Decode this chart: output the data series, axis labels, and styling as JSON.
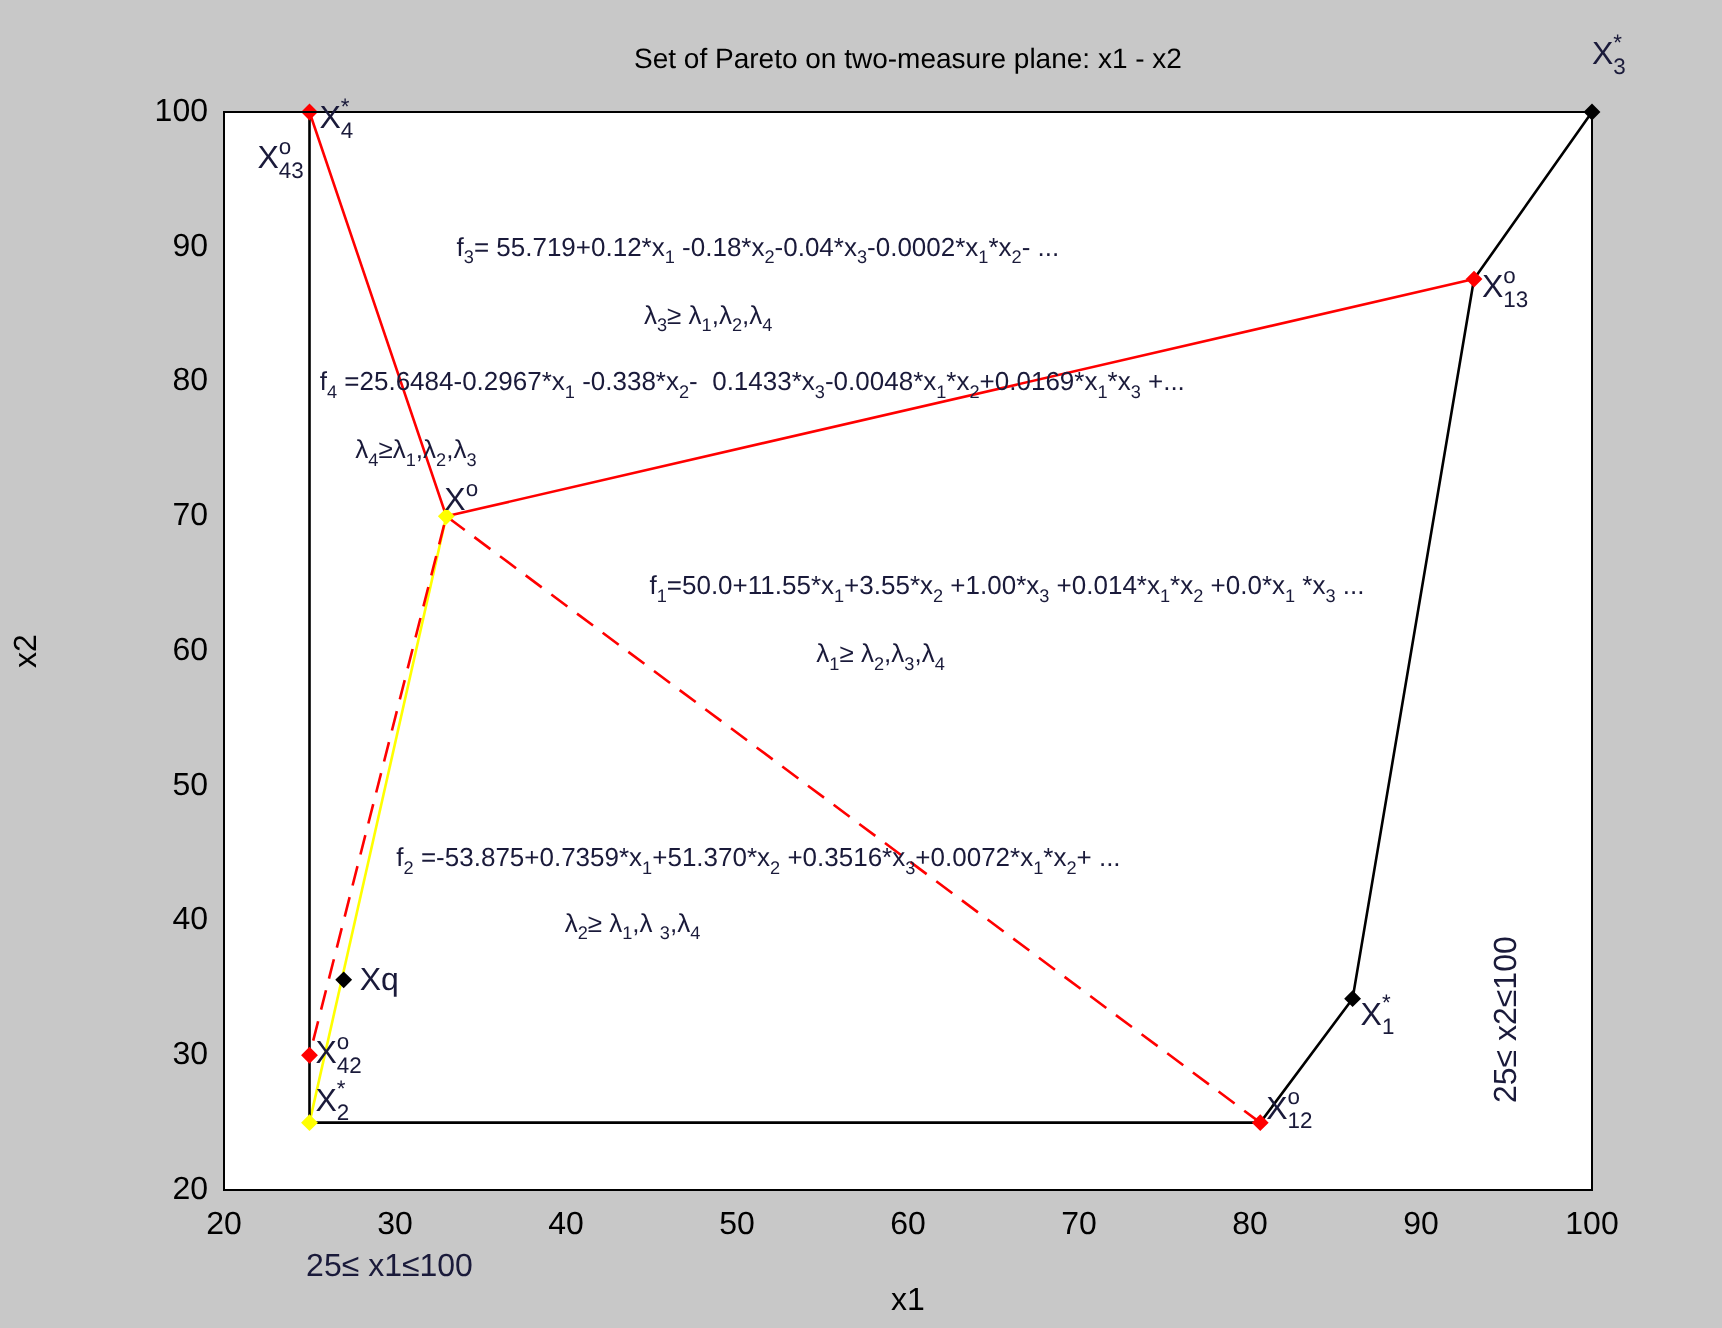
{
  "chart_data": {
    "type": "line",
    "title": "Set of Pareto on two-measure plane: x1 - x2",
    "xlabel": "x1",
    "ylabel": "x2",
    "xlim": [
      20,
      100
    ],
    "xticks": [
      20,
      30,
      40,
      50,
      60,
      70,
      80,
      90,
      100
    ],
    "ylim": [
      20,
      100
    ],
    "yticks": [
      20,
      30,
      40,
      50,
      60,
      70,
      80,
      90,
      100
    ],
    "grid": false,
    "legend": false,
    "marker": "none",
    "line_style": "solid",
    "series": [
      {
        "color": "#000000",
        "x": [
          25,
          25,
          80.6,
          86,
          93.1,
          100
        ],
        "values": [
          100,
          25,
          25,
          34.2,
          87.6,
          100
        ]
      },
      {
        "color": "#ff0000",
        "x": [
          25,
          33,
          93.1
        ],
        "values": [
          100,
          70,
          87.6
        ]
      },
      {
        "color": "#ff0000",
        "line_style": "dashed",
        "x": [
          80.6,
          33,
          25
        ],
        "values": [
          25,
          70,
          30
        ]
      },
      {
        "color": "#ffff00",
        "x": [
          33,
          25
        ],
        "values": [
          70,
          25
        ]
      },
      {
        "type": "scatter",
        "marker": "diamond",
        "x": [
          25,
          33,
          93.1,
          80.6,
          86,
          100,
          27,
          25,
          25
        ],
        "values": [
          100,
          70,
          87.6,
          25,
          34.2,
          100,
          35.6,
          30,
          25
        ],
        "colors": [
          "#ff0000",
          "#ffff00",
          "#ff0000",
          "#ff0000",
          "#000000",
          "#000000",
          "#000000",
          "#ff0000",
          "#ffff00"
        ]
      }
    ],
    "annotations": [
      {
        "text": "X$^{*}$$_{4}$",
        "x": 25,
        "y": 100
      },
      {
        "text": "X$^{o}$$_{43}$",
        "x": 25,
        "y": 100
      },
      {
        "text": "X$^{o}$",
        "x": 33,
        "y": 70
      },
      {
        "text": "X$^{o}$$_{13}$",
        "x": 93.1,
        "y": 87.6
      },
      {
        "text": "X$^{o}$$_{12}$",
        "x": 80.6,
        "y": 25
      },
      {
        "text": "X$^{*}$$_{1}$",
        "x": 86,
        "y": 34.2
      },
      {
        "text": "X$^{*}$$_{3}$",
        "x": 100,
        "y": 100
      },
      {
        "text": "Xq",
        "x": 27,
        "y": 35.6
      },
      {
        "text": "X$^{o}$$_{42}$",
        "x": 25,
        "y": 30
      },
      {
        "text": "X$^{*}$$_{2}$",
        "x": 25,
        "y": 25
      },
      "f$_{3}$= 55.719+0.12*x$_{1}$ -0.18*x$_{2}$-0.04*x$_{3}$-0.0002*x$_{1}$*x$_{2}$- ...",
      "λ$_{3}$≥ λ$_{1}$,λ$_{2}$,λ$_{4}$",
      "f$_{4}$ =25.6484-0.2967*x$_{1}$ -0.338*x$_{2}$-  0.1433*x$_{3}$-0.0048*x$_{1}$*x$_{2}$+0.0169*x$_{1}$*x$_{3}$ +...",
      "λ$_{4}$≥λ$_{1}$,λ$_{2}$,λ$_{3}$",
      "f$_{1}$=50.0+11.55*x$_{1}$+3.55*x$_{2}$ +1.00*x$_{3}$ +0.014*x$_{1}$*x$_{2}$ +0.0*x$_{1}$ *x$_{3}$ ...",
      "λ$_{1}$≥ λ$_{2}$,λ$_{3}$,λ$_{4}$",
      "f$_{2}$ =-53.875+0.7359*x$_{1}$+51.370*x$_{2}$ +0.3516*x$_{3}$+0.0072*x$_{1}$*x$_{2}$+ ...",
      "λ$_{2}$≥ λ$_{1}$,λ $_{3}$,λ$_{4}$",
      "25≤ x1≤100",
      "25≤ x2≤100"
    ]
  }
}
